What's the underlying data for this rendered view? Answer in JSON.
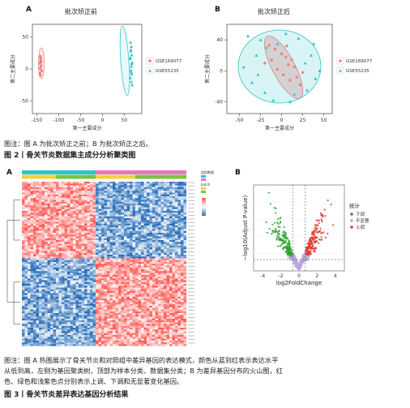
{
  "figure2": {
    "panel_a_letter": "A",
    "panel_b_letter": "B",
    "panel_a_title": "批次矫正前",
    "panel_b_title": "批次矫正后",
    "x_axis_label": "第一主要成分",
    "y_axis_label": "第二主要成分",
    "legend_items": [
      "GSE169077",
      "GSE55235"
    ],
    "caption": "图注：图 A 为批次矫正之前；B 为批次矫正之后。",
    "title": "图 2丨骨关节炎数据集主成分分析聚类图"
  },
  "figure3": {
    "panel_a_letter": "A",
    "panel_b_letter": "B",
    "heatmap_legend_labels": [
      "组别",
      "数据",
      "batch",
      "组别"
    ],
    "volcano_x_label": "log2FoldChange",
    "volcano_y_label": "−log10(Adjust P-value)",
    "volcano_legend_title": "统计",
    "volcano_legend_items": [
      "下调",
      "不显著",
      "上调"
    ],
    "caption_line1": "图注：图 A 热图展示了骨关节炎和对照组中差异基因的表达模式，颜色从蓝到红表示表达水平",
    "caption_line2": "从低到高，左侧为基因聚类树，顶部为样本分类、数据集分类；B 为差异基因分布的火山图，红",
    "caption_line3": "色、绿色和浅紫色点分别表示上调、下调和无显著变化基因。",
    "title": "图 3丨骨关节炎差异表达基因分析结果"
  },
  "chart_data": [
    {
      "type": "scatter",
      "title": "批次矫正前",
      "xlabel": "第一主要成分",
      "ylabel": "第二主要成分",
      "xlim": [
        -160,
        90
      ],
      "ylim": [
        -70,
        70
      ],
      "xticks": [
        -150,
        -100,
        -50,
        0,
        50
      ],
      "yticks": [
        -50,
        0,
        50
      ],
      "series": [
        {
          "name": "GSE169077",
          "color": "#f08080",
          "x": [
            -142,
            -141,
            -143,
            -140,
            -142,
            -139,
            -143,
            -141,
            -140,
            -142
          ],
          "y": [
            20,
            14,
            9,
            5,
            1,
            -3,
            -7,
            17,
            11,
            -10
          ]
        },
        {
          "name": "GSE55235",
          "color": "#2ec4c8",
          "x": [
            64,
            66,
            65,
            67,
            63,
            68,
            66,
            65,
            67,
            64,
            66,
            68,
            65,
            67,
            66,
            64
          ],
          "y": [
            42,
            35,
            28,
            22,
            16,
            10,
            4,
            -2,
            -8,
            -14,
            -20,
            -25,
            30,
            8,
            -5,
            18
          ]
        }
      ]
    },
    {
      "type": "scatter",
      "title": "批次矫正后",
      "xlabel": "第一主要成分",
      "ylabel": "第二主要成分",
      "xlim": [
        -65,
        60
      ],
      "ylim": [
        -55,
        60
      ],
      "xticks": [
        -50,
        -25,
        0,
        25,
        50
      ],
      "yticks": [
        -40,
        0,
        40
      ],
      "series": [
        {
          "name": "GSE169077",
          "color": "#f08080",
          "x": [
            -15,
            -8,
            0,
            5,
            12,
            -20,
            8,
            15,
            -5,
            2,
            18,
            10,
            22,
            -12,
            6,
            25
          ],
          "y": [
            33,
            28,
            22,
            18,
            14,
            10,
            8,
            5,
            2,
            -5,
            -8,
            -12,
            -18,
            14,
            32,
            -2
          ]
        },
        {
          "name": "GSE55235",
          "color": "#2ec4c8",
          "x": [
            -40,
            -25,
            -18,
            -30,
            -5,
            15,
            30,
            40,
            -35,
            -45,
            10,
            35,
            -10,
            20,
            -28,
            45,
            5,
            -20,
            28,
            38
          ],
          "y": [
            45,
            40,
            30,
            20,
            35,
            -30,
            -25,
            -10,
            -15,
            5,
            -40,
            20,
            -38,
            42,
            -5,
            0,
            48,
            -28,
            10,
            35
          ]
        }
      ]
    },
    {
      "type": "scatter",
      "title": "",
      "xlabel": "log2FoldChange",
      "ylabel": "−log10(Adjust P-value)",
      "xlim": [
        -5,
        5
      ],
      "xticks": [
        -4,
        -2,
        0,
        2,
        4
      ],
      "series": [
        {
          "name": "下调",
          "color": "#2ca02c"
        },
        {
          "name": "不显著",
          "color": "#b8a6d9"
        },
        {
          "name": "上调",
          "color": "#e23b2e"
        }
      ]
    }
  ]
}
